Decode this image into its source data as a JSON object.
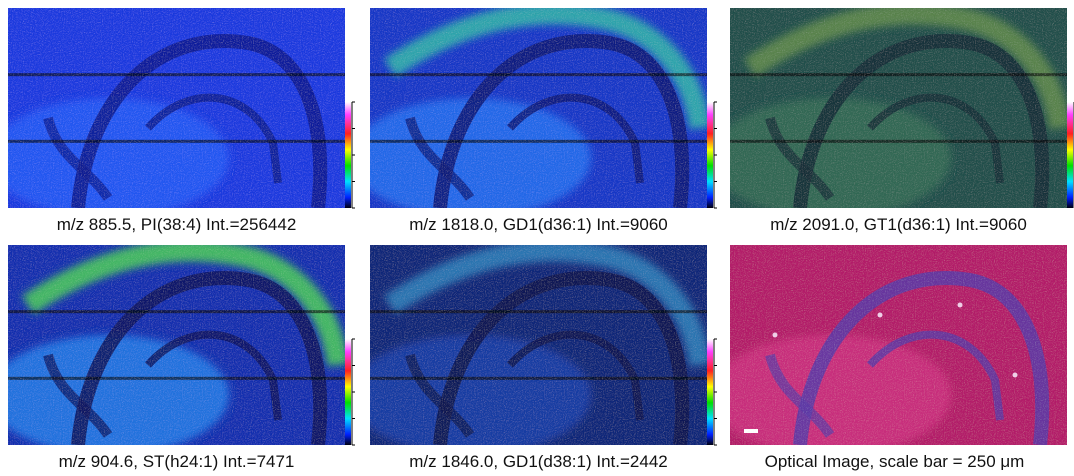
{
  "panels": [
    {
      "caption": "m/z 885.5, PI(38:4) Int.=256442"
    },
    {
      "caption": "m/z 1818.0, GD1(d36:1) Int.=9060"
    },
    {
      "caption": "m/z 2091.0, GT1(d36:1) Int.=9060"
    },
    {
      "caption": "m/z 904.6, ST(h24:1) Int.=7471"
    },
    {
      "caption": "m/z 1846.0, GD1(d38:1) Int.=2442"
    },
    {
      "caption": "Optical Image, scale bar = 250 μm"
    }
  ]
}
